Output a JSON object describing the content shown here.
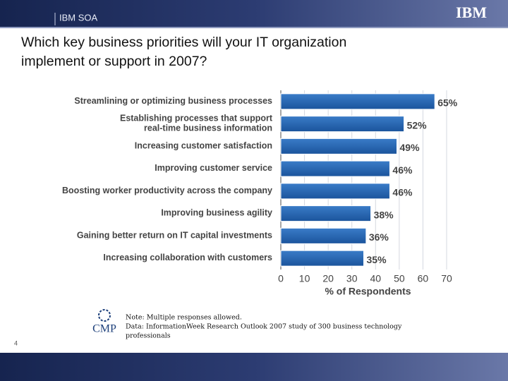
{
  "header": {
    "section": "IBM SOA",
    "logo": "IBM"
  },
  "title": "Which key business priorities will your IT organization implement or support in 2007?",
  "chart_data": {
    "type": "bar",
    "orientation": "horizontal",
    "categories": [
      "Streamlining or optimizing business processes",
      "Establishing processes that support\nreal-time business information",
      "Increasing customer satisfaction",
      "Improving customer service",
      "Boosting worker productivity across the company",
      "Improving business agility",
      "Gaining better return on IT capital investments",
      "Increasing collaboration with customers"
    ],
    "values": [
      65,
      52,
      49,
      46,
      46,
      38,
      36,
      35
    ],
    "value_labels": [
      "65%",
      "52%",
      "49%",
      "46%",
      "46%",
      "38%",
      "36%",
      "35%"
    ],
    "color": "#2463ae",
    "xlim": [
      0,
      70
    ],
    "xticks": [
      0,
      10,
      20,
      30,
      40,
      50,
      60,
      70
    ],
    "xlabel": "% of Respondents",
    "grid": true
  },
  "source": {
    "logo": "CMP",
    "lines": [
      "Note: Multiple responses allowed.",
      "Data: InformationWeek Research Outlook 2007 study of 300 business technology",
      "professionals"
    ]
  },
  "page_number": "4"
}
